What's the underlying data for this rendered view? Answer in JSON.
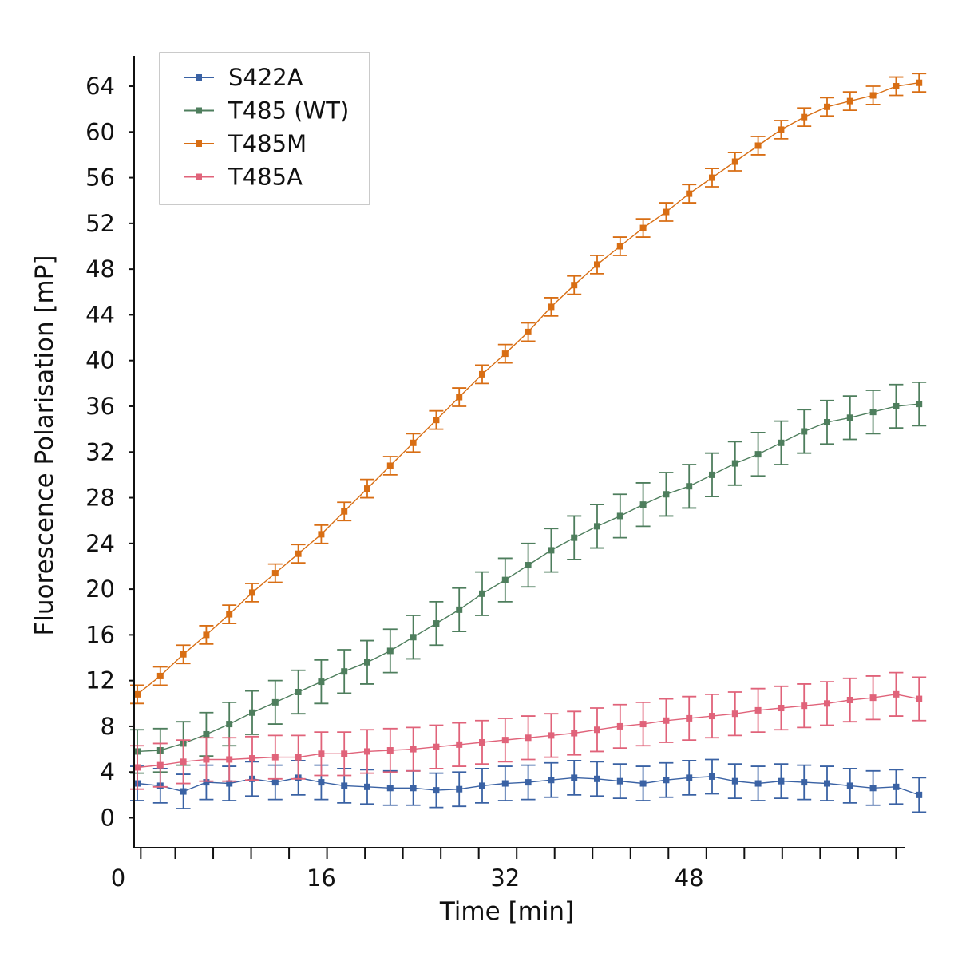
{
  "chart_data": {
    "type": "line",
    "title": "",
    "xlabel": "Time [min]",
    "ylabel": "Fluorescence Polarisation [mP]",
    "xlim": [
      0,
      69
    ],
    "ylim": [
      -2.7,
      66.5
    ],
    "x_ticks": [
      0,
      16,
      32,
      48
    ],
    "x_minor_ticks": [
      0.3,
      3.3,
      6.6,
      9.9,
      13.2,
      16.5,
      19.8,
      23.1,
      26.4,
      29.7,
      33,
      36.3,
      39.6,
      42.9,
      46.2,
      49.5,
      52.8,
      56.1,
      59.4,
      62.7,
      66
    ],
    "y_ticks": [
      0,
      4,
      8,
      12,
      16,
      20,
      24,
      28,
      32,
      36,
      40,
      44,
      48,
      52,
      56,
      60,
      64
    ],
    "grid": false,
    "legend_position": "top-left",
    "markers": "square",
    "error_bars": true,
    "series": [
      {
        "name": "S422A",
        "color": "#3a62a4",
        "points": [
          [
            0,
            3
          ],
          [
            2,
            2.8
          ],
          [
            4,
            2.3
          ],
          [
            6,
            3.1
          ],
          [
            8,
            3
          ],
          [
            10,
            3.4
          ],
          [
            12,
            3.1
          ],
          [
            14,
            3.5
          ],
          [
            16,
            3.1
          ],
          [
            18,
            2.8
          ],
          [
            20,
            2.7
          ],
          [
            22,
            2.6
          ],
          [
            24,
            2.6
          ],
          [
            26,
            2.4
          ],
          [
            28,
            2.5
          ],
          [
            30,
            2.8
          ],
          [
            32,
            3
          ],
          [
            34,
            3.1
          ],
          [
            36,
            3.3
          ],
          [
            38,
            3.5
          ],
          [
            40,
            3.4
          ],
          [
            42,
            3.2
          ],
          [
            44,
            3
          ],
          [
            46,
            3.3
          ],
          [
            48,
            3.5
          ],
          [
            50,
            3.6
          ],
          [
            52,
            3.2
          ],
          [
            54,
            3
          ],
          [
            56,
            3.2
          ],
          [
            58,
            3.1
          ],
          [
            60,
            3
          ],
          [
            62,
            2.8
          ],
          [
            64,
            2.6
          ],
          [
            66,
            2.7
          ],
          [
            68,
            2
          ]
        ],
        "error": 1.5
      },
      {
        "name": "T485 (WT)",
        "color": "#4e7e5d",
        "points": [
          [
            0,
            5.8
          ],
          [
            2,
            5.9
          ],
          [
            4,
            6.5
          ],
          [
            6,
            7.3
          ],
          [
            8,
            8.2
          ],
          [
            10,
            9.2
          ],
          [
            12,
            10.1
          ],
          [
            14,
            11
          ],
          [
            16,
            11.9
          ],
          [
            18,
            12.8
          ],
          [
            20,
            13.6
          ],
          [
            22,
            14.6
          ],
          [
            24,
            15.8
          ],
          [
            26,
            17
          ],
          [
            28,
            18.2
          ],
          [
            30,
            19.6
          ],
          [
            32,
            20.8
          ],
          [
            34,
            22.1
          ],
          [
            36,
            23.4
          ],
          [
            38,
            24.5
          ],
          [
            40,
            25.5
          ],
          [
            42,
            26.4
          ],
          [
            44,
            27.4
          ],
          [
            46,
            28.3
          ],
          [
            48,
            29
          ],
          [
            50,
            30
          ],
          [
            52,
            31
          ],
          [
            54,
            31.8
          ],
          [
            56,
            32.8
          ],
          [
            58,
            33.8
          ],
          [
            60,
            34.6
          ],
          [
            62,
            35
          ],
          [
            64,
            35.5
          ],
          [
            66,
            36
          ],
          [
            68,
            36.2
          ]
        ],
        "error": 1.9
      },
      {
        "name": "T485M",
        "color": "#d86e14",
        "points": [
          [
            0,
            10.8
          ],
          [
            2,
            12.4
          ],
          [
            4,
            14.3
          ],
          [
            6,
            16
          ],
          [
            8,
            17.8
          ],
          [
            10,
            19.7
          ],
          [
            12,
            21.4
          ],
          [
            14,
            23.1
          ],
          [
            16,
            24.8
          ],
          [
            18,
            26.8
          ],
          [
            20,
            28.8
          ],
          [
            22,
            30.8
          ],
          [
            24,
            32.8
          ],
          [
            26,
            34.8
          ],
          [
            28,
            36.8
          ],
          [
            30,
            38.8
          ],
          [
            32,
            40.6
          ],
          [
            34,
            42.5
          ],
          [
            36,
            44.7
          ],
          [
            38,
            46.6
          ],
          [
            40,
            48.4
          ],
          [
            42,
            50
          ],
          [
            44,
            51.6
          ],
          [
            46,
            53
          ],
          [
            48,
            54.6
          ],
          [
            50,
            56
          ],
          [
            52,
            57.4
          ],
          [
            54,
            58.8
          ],
          [
            56,
            60.2
          ],
          [
            58,
            61.3
          ],
          [
            60,
            62.2
          ],
          [
            62,
            62.7
          ],
          [
            64,
            63.2
          ],
          [
            66,
            64
          ],
          [
            68,
            64.3
          ]
        ],
        "error": 0.8
      },
      {
        "name": "T485A",
        "color": "#e0637a",
        "points": [
          [
            0,
            4.4
          ],
          [
            2,
            4.6
          ],
          [
            4,
            4.9
          ],
          [
            6,
            5.1
          ],
          [
            8,
            5.1
          ],
          [
            10,
            5.2
          ],
          [
            12,
            5.3
          ],
          [
            14,
            5.3
          ],
          [
            16,
            5.6
          ],
          [
            18,
            5.6
          ],
          [
            20,
            5.8
          ],
          [
            22,
            5.9
          ],
          [
            24,
            6
          ],
          [
            26,
            6.2
          ],
          [
            28,
            6.4
          ],
          [
            30,
            6.6
          ],
          [
            32,
            6.8
          ],
          [
            34,
            7
          ],
          [
            36,
            7.2
          ],
          [
            38,
            7.4
          ],
          [
            40,
            7.7
          ],
          [
            42,
            8
          ],
          [
            44,
            8.2
          ],
          [
            46,
            8.5
          ],
          [
            48,
            8.7
          ],
          [
            50,
            8.9
          ],
          [
            52,
            9.1
          ],
          [
            54,
            9.4
          ],
          [
            56,
            9.6
          ],
          [
            58,
            9.8
          ],
          [
            60,
            10
          ],
          [
            62,
            10.3
          ],
          [
            64,
            10.5
          ],
          [
            66,
            10.8
          ],
          [
            68,
            10.4
          ]
        ],
        "error": 1.9
      }
    ]
  }
}
